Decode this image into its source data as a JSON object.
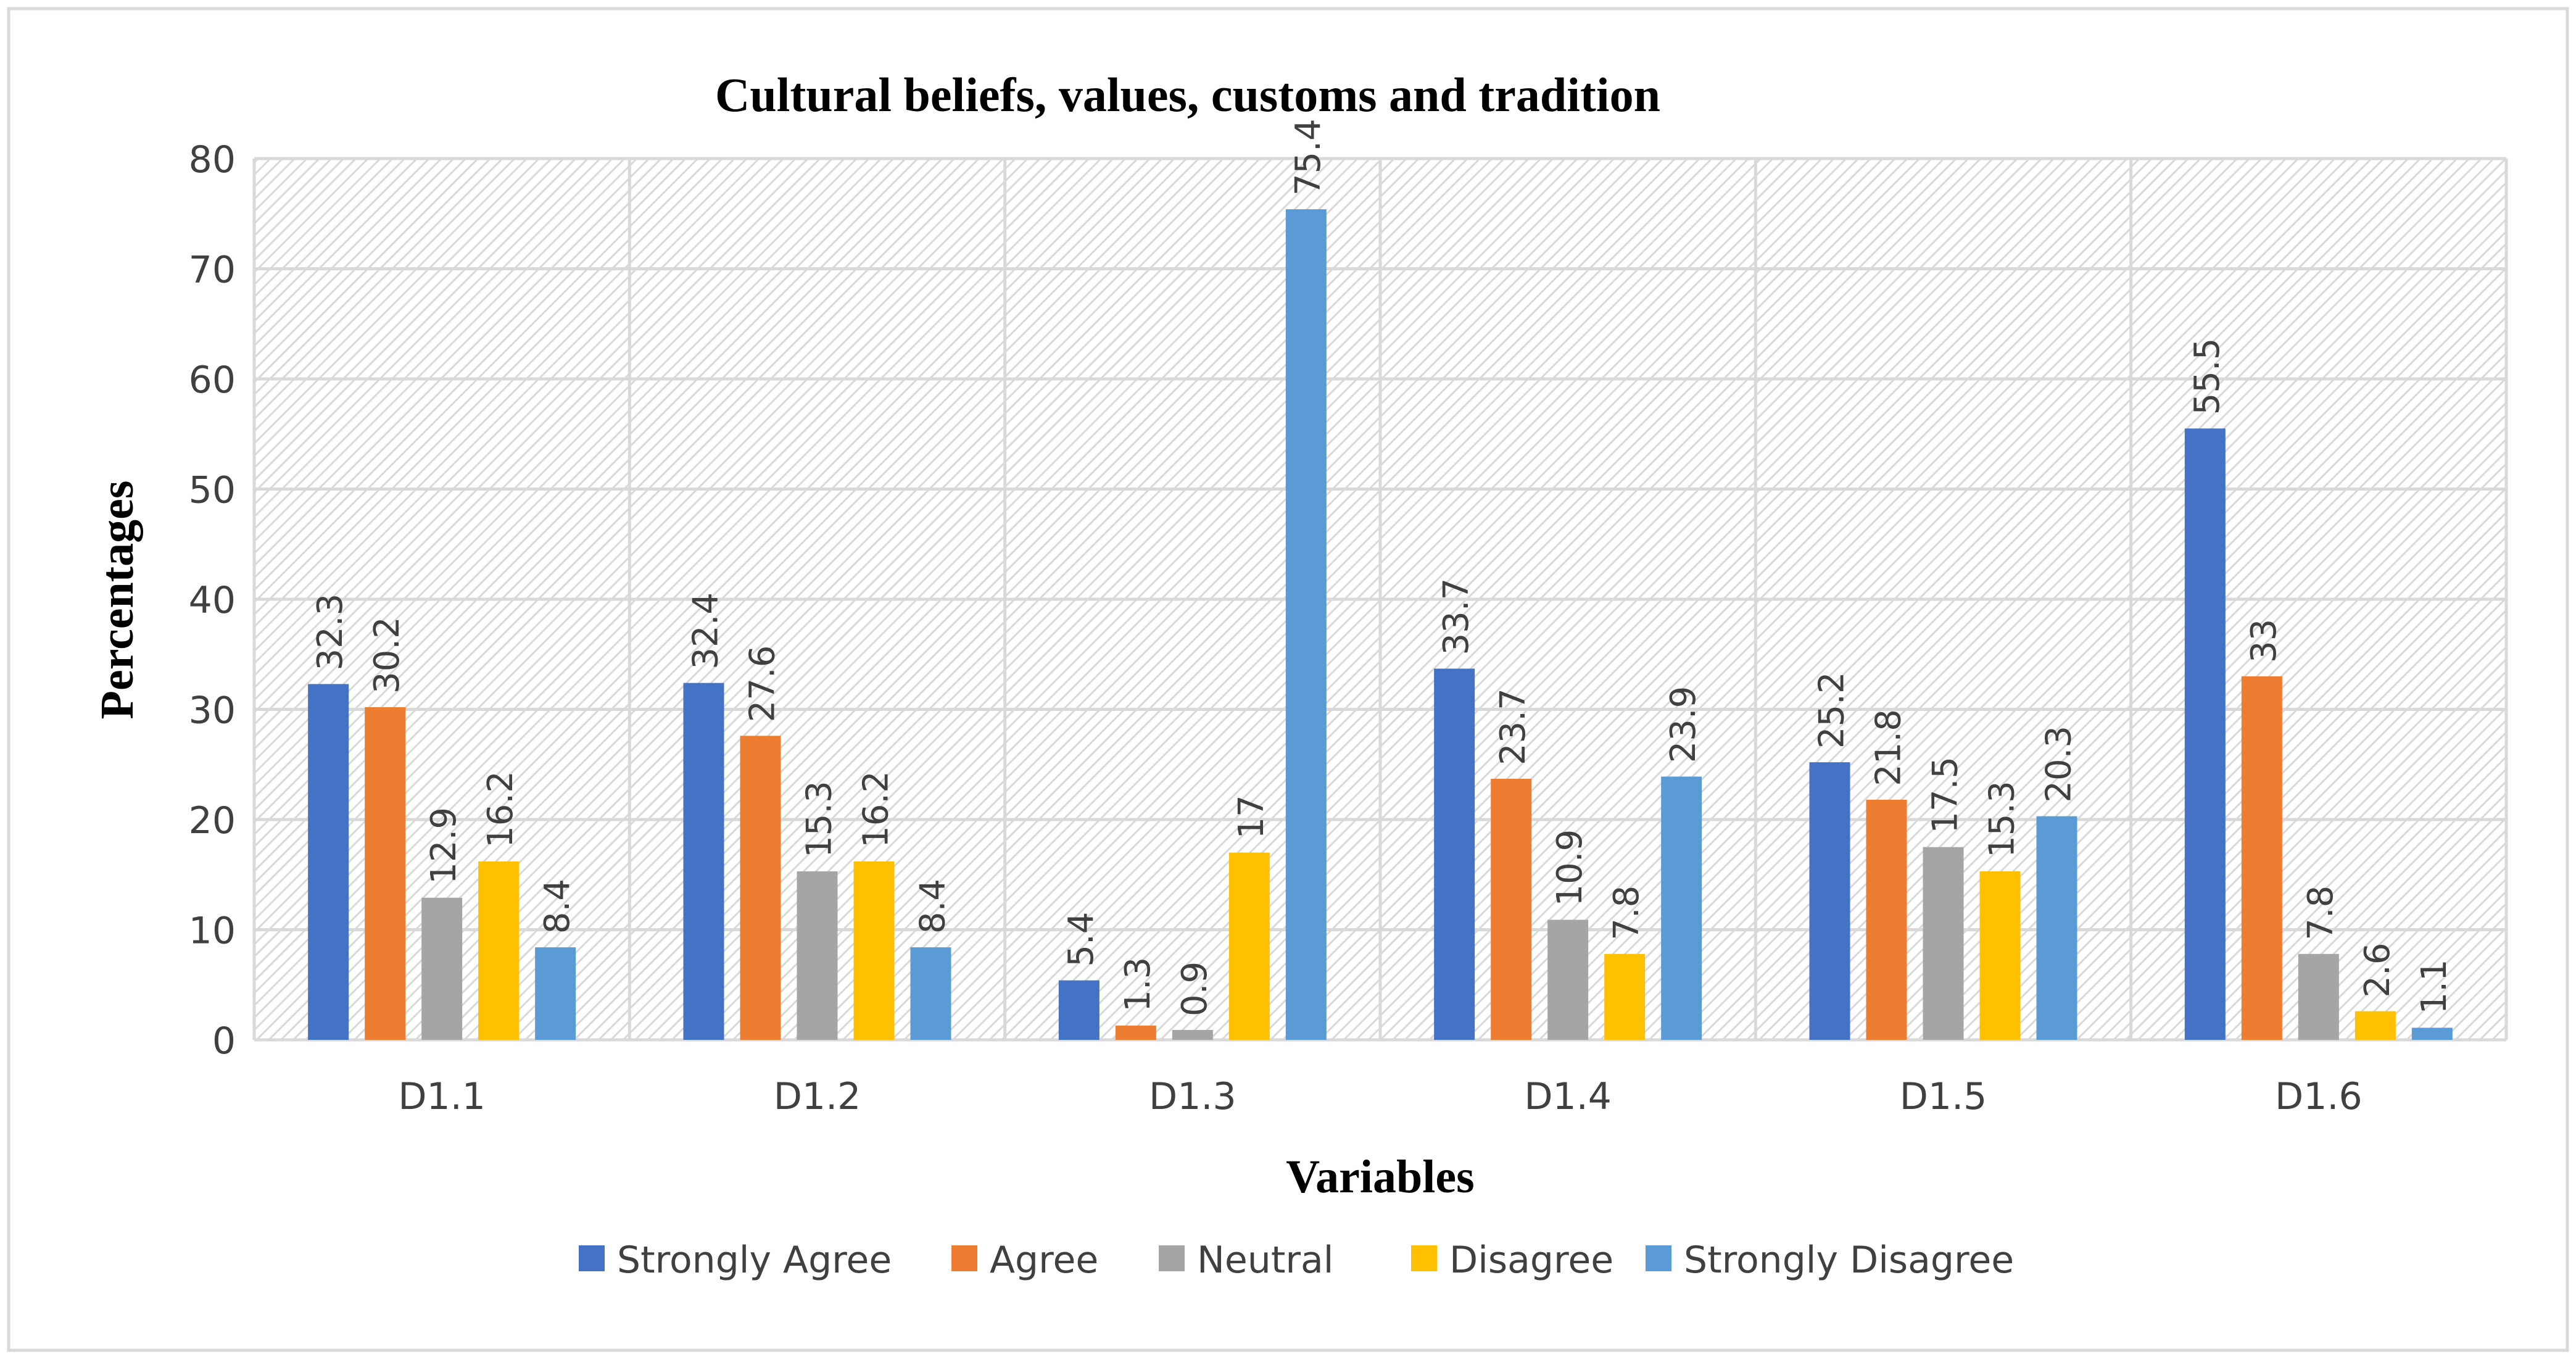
{
  "chart_data": {
    "type": "bar",
    "title": "Cultural beliefs, values, customs and tradition",
    "xlabel": "Variables",
    "ylabel": "Percentages",
    "ylim": [
      0,
      80
    ],
    "yticks": [
      0,
      10,
      20,
      30,
      40,
      50,
      60,
      70,
      80
    ],
    "grid": true,
    "legend_position": "bottom",
    "categories": [
      "D1.1",
      "D1.2",
      "D1.3",
      "D1.4",
      "D1.5",
      "D1.6"
    ],
    "series": [
      {
        "name": "Strongly Agree",
        "color": "#4472C4",
        "values": [
          32.3,
          32.4,
          5.4,
          33.7,
          25.2,
          55.5
        ],
        "labels": [
          "32.3",
          "32.4",
          "5.4",
          "33.7",
          "25.2",
          "55.5"
        ]
      },
      {
        "name": "Agree",
        "color": "#ED7D31",
        "values": [
          30.2,
          27.6,
          1.3,
          23.7,
          21.8,
          33
        ],
        "labels": [
          "30.2",
          "27.6",
          "1.3",
          "23.7",
          "21.8",
          "33"
        ]
      },
      {
        "name": "Neutral",
        "color": "#A5A5A5",
        "values": [
          12.9,
          15.3,
          0.9,
          10.9,
          17.5,
          7.8
        ],
        "labels": [
          "12.9",
          "15.3",
          "0.9",
          "10.9",
          "17.5",
          "7.8"
        ]
      },
      {
        "name": "Disagree",
        "color": "#FFC000",
        "values": [
          16.2,
          16.2,
          17,
          7.8,
          15.3,
          2.6
        ],
        "labels": [
          "16.2",
          "16.2",
          "17",
          "7.8",
          "15.3",
          "2.6"
        ]
      },
      {
        "name": "Strongly Disagree",
        "color": "#5B9BD5",
        "values": [
          8.4,
          8.4,
          75.4,
          23.9,
          20.3,
          1.1
        ],
        "labels": [
          "8.4",
          "8.4",
          "75.4",
          "23.9",
          "20.3",
          "1.1"
        ]
      }
    ]
  }
}
